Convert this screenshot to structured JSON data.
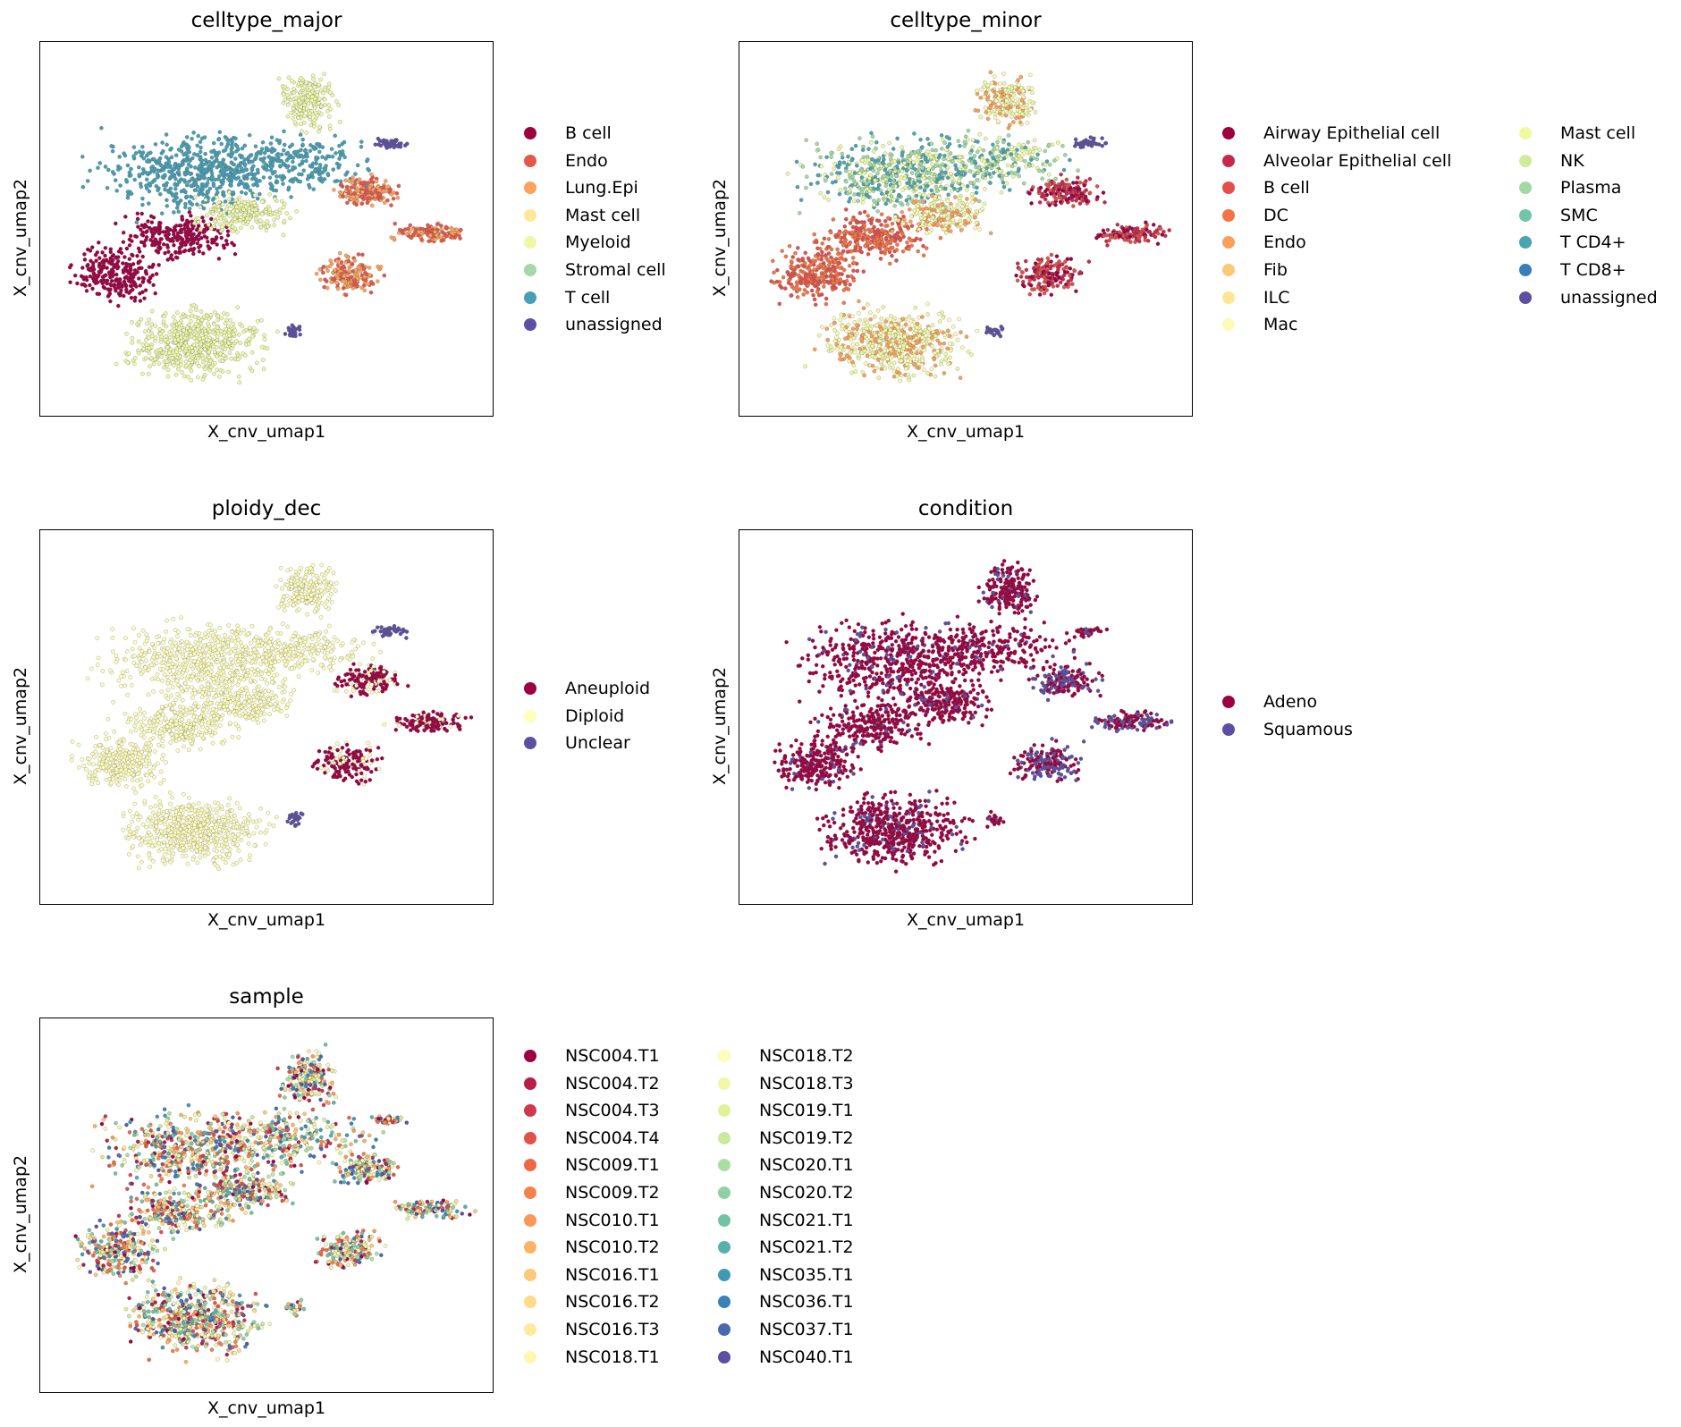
{
  "chart_data": [
    {
      "type": "scatter",
      "title": "celltype_major",
      "xlabel": "X_cnv_umap1",
      "ylabel": "X_cnv_umap2",
      "legend": {
        "placement": "right",
        "columns": [
          [
            {
              "label": "B cell",
              "color": "#9e0142"
            },
            {
              "label": "Endo",
              "color": "#e55749"
            },
            {
              "label": "Lung.Epi",
              "color": "#fba35e"
            },
            {
              "label": "Mast cell",
              "color": "#fee999"
            },
            {
              "label": "Myeloid",
              "color": "#eef8a8"
            },
            {
              "label": "Stromal cell",
              "color": "#a2d9a4"
            },
            {
              "label": "T cell",
              "color": "#479fb3"
            },
            {
              "label": "unassigned",
              "color": "#5e4fa2"
            }
          ]
        ]
      }
    },
    {
      "type": "scatter",
      "title": "celltype_minor",
      "xlabel": "X_cnv_umap1",
      "ylabel": "X_cnv_umap2",
      "legend": {
        "placement": "right",
        "columns": [
          [
            {
              "label": "Airway Epithelial cell",
              "color": "#9e0142"
            },
            {
              "label": "Alveolar Epithelial cell",
              "color": "#c62a4b"
            },
            {
              "label": "B cell",
              "color": "#e1504a"
            },
            {
              "label": "DC",
              "color": "#f57446"
            },
            {
              "label": "Endo",
              "color": "#f9a05a"
            },
            {
              "label": "Fib",
              "color": "#fdc877"
            },
            {
              "label": "ILC",
              "color": "#fee695"
            },
            {
              "label": "Mac",
              "color": "#fefbb9"
            }
          ],
          [
            {
              "label": "Mast cell",
              "color": "#effa9f"
            },
            {
              "label": "NK",
              "color": "#cfec9d"
            },
            {
              "label": "Plasma",
              "color": "#a0d9a3"
            },
            {
              "label": "SMC",
              "color": "#70c6a5"
            },
            {
              "label": "T CD4+",
              "color": "#4ba4b1"
            },
            {
              "label": "T CD8+",
              "color": "#3a7eb8"
            },
            {
              "label": "unassigned",
              "color": "#5e4fa2"
            }
          ]
        ]
      }
    },
    {
      "type": "scatter",
      "title": "ploidy_dec",
      "xlabel": "X_cnv_umap1",
      "ylabel": "X_cnv_umap2",
      "legend": {
        "placement": "right",
        "columns": [
          [
            {
              "label": "Aneuploid",
              "color": "#9e0142"
            },
            {
              "label": "Diploid",
              "color": "#fefebd"
            },
            {
              "label": "Unclear",
              "color": "#5e4fa2"
            }
          ]
        ]
      }
    },
    {
      "type": "scatter",
      "title": "condition",
      "xlabel": "X_cnv_umap1",
      "ylabel": "X_cnv_umap2",
      "legend": {
        "placement": "right",
        "columns": [
          [
            {
              "label": "Adeno",
              "color": "#9e0142"
            },
            {
              "label": "Squamous",
              "color": "#5e4fa2"
            }
          ]
        ]
      }
    },
    {
      "type": "scatter",
      "title": "sample",
      "xlabel": "X_cnv_umap1",
      "ylabel": "X_cnv_umap2",
      "legend": {
        "placement": "right",
        "columns": [
          [
            {
              "label": "NSC004.T1",
              "color": "#9e0142"
            },
            {
              "label": "NSC004.T2",
              "color": "#b81e48"
            },
            {
              "label": "NSC004.T3",
              "color": "#d0384d"
            },
            {
              "label": "NSC004.T4",
              "color": "#e1504a"
            },
            {
              "label": "NSC009.T1",
              "color": "#f06744"
            },
            {
              "label": "NSC009.T2",
              "color": "#f6804c"
            },
            {
              "label": "NSC010.T1",
              "color": "#fa9856"
            },
            {
              "label": "NSC010.T2",
              "color": "#fdb265"
            },
            {
              "label": "NSC016.T1",
              "color": "#fdc877"
            },
            {
              "label": "NSC016.T2",
              "color": "#fedb87"
            },
            {
              "label": "NSC016.T3",
              "color": "#feea9b"
            },
            {
              "label": "NSC018.T1",
              "color": "#fff6b0"
            }
          ],
          [
            {
              "label": "NSC018.T2",
              "color": "#fbfdba"
            },
            {
              "label": "NSC018.T3",
              "color": "#f1f9a9"
            },
            {
              "label": "NSC019.T1",
              "color": "#e0f295"
            },
            {
              "label": "NSC019.T2",
              "color": "#c8e99e"
            },
            {
              "label": "NSC020.T1",
              "color": "#acdea2"
            },
            {
              "label": "NSC020.T2",
              "color": "#8ed1a4"
            },
            {
              "label": "NSC021.T1",
              "color": "#70c4a5"
            },
            {
              "label": "NSC021.T2",
              "color": "#56b0ad"
            },
            {
              "label": "NSC035.T1",
              "color": "#4299b4"
            },
            {
              "label": "NSC036.T1",
              "color": "#3981ba"
            },
            {
              "label": "NSC037.T1",
              "color": "#4a68ae"
            },
            {
              "label": "NSC040.T1",
              "color": "#5e4fa2"
            }
          ]
        ]
      }
    }
  ]
}
